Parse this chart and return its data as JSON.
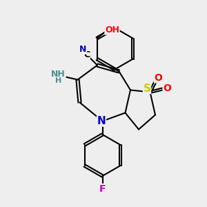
{
  "bg_color": "#eeeeee",
  "bond_color": "#000000",
  "atom_colors": {
    "N": "#0000cc",
    "S": "#cccc00",
    "O": "#ff0000",
    "F": "#cc00cc",
    "C": "#000000",
    "H": "#4a9090"
  },
  "font_size": 9,
  "fig_size": [
    3.0,
    3.0
  ],
  "dpi": 100
}
